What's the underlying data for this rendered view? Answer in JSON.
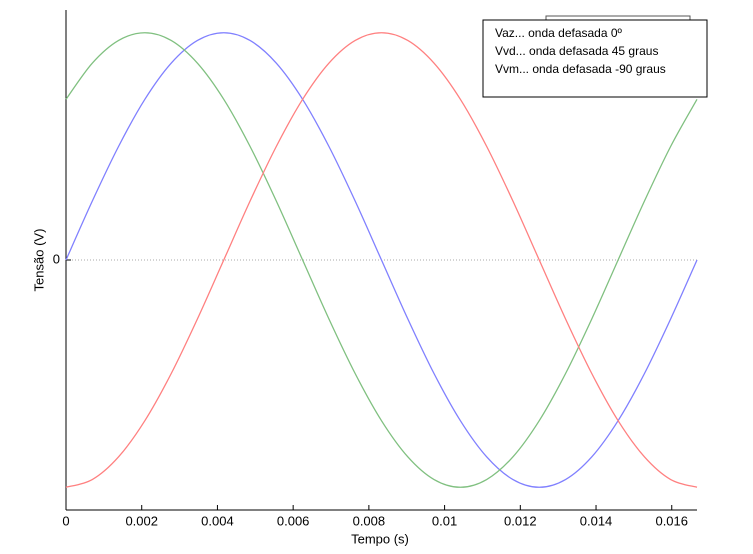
{
  "chart_data": {
    "type": "line",
    "x_label": "Tempo (s)",
    "y_label": "Tensão (V)",
    "x": [
      0,
      0.000694,
      0.001389,
      0.002083,
      0.002778,
      0.003472,
      0.004167,
      0.004861,
      0.005556,
      0.00625,
      0.006944,
      0.007639,
      0.008333,
      0.009028,
      0.009722,
      0.010417,
      0.011111,
      0.011806,
      0.0125,
      0.013194,
      0.013889,
      0.014583,
      0.015278,
      0.015972,
      0.016667
    ],
    "series": [
      {
        "name": "Vaz... onda defasada 0º",
        "color": "#8080ff",
        "values": [
          0,
          0.259,
          0.5,
          0.707,
          0.866,
          0.966,
          1,
          0.966,
          0.866,
          0.707,
          0.5,
          0.259,
          0,
          -0.259,
          -0.5,
          -0.707,
          -0.866,
          -0.966,
          -1,
          -0.966,
          -0.866,
          -0.707,
          -0.5,
          -0.259,
          0
        ]
      },
      {
        "name": "Vvd... onda defasada 45 graus",
        "color": "#80c080",
        "values": [
          0.707,
          0.866,
          0.966,
          1,
          0.966,
          0.866,
          0.707,
          0.5,
          0.259,
          0,
          -0.259,
          -0.5,
          -0.707,
          -0.866,
          -0.966,
          -1,
          -0.966,
          -0.866,
          -0.707,
          -0.5,
          -0.259,
          0,
          0.259,
          0.5,
          0.707
        ]
      },
      {
        "name": "Vvm... onda defasada -90 graus",
        "color": "#ff8080",
        "values": [
          -1,
          -0.966,
          -0.866,
          -0.707,
          -0.5,
          -0.259,
          0,
          0.259,
          0.5,
          0.707,
          0.866,
          0.966,
          1,
          0.966,
          0.866,
          0.707,
          0.5,
          0.259,
          0,
          -0.259,
          -0.5,
          -0.707,
          -0.866,
          -0.966,
          -1
        ]
      }
    ],
    "xlim": [
      0,
      0.016667
    ],
    "ylim": [
      -1.1,
      1.1
    ],
    "xticks": [
      0,
      0.002,
      0.004,
      0.006,
      0.008,
      0.01,
      0.012,
      0.014,
      0.016
    ],
    "yticks": [
      0
    ],
    "legend": "upper right"
  }
}
